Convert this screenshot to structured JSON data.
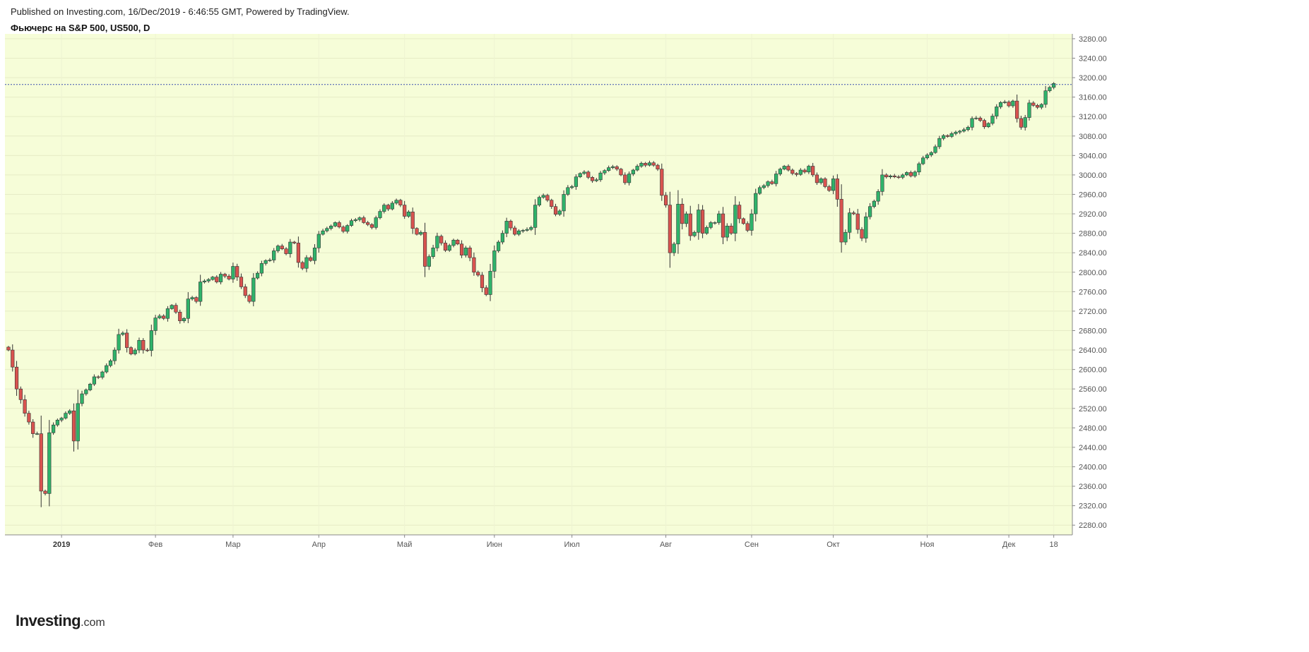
{
  "header": {
    "published": "Published on Investing.com, 16/Dec/2019 - 6:46:55 GMT, Powered by TradingView.",
    "symbol_title": "Фьючерс на S&P 500, US500, D"
  },
  "logo": {
    "main": "Investing",
    "suffix": ".com"
  },
  "colors": {
    "background": "#f6fdd8",
    "up": "#2fb36a",
    "down": "#d9534f",
    "wick": "#333333",
    "price_line": "#3a4fb0"
  },
  "chart_data": {
    "type": "candlestick",
    "title": "Фьючерс на S&P 500, US500, D",
    "ylim": [
      2260,
      3290
    ],
    "y_ticks": [
      "3280.00",
      "3240.00",
      "3200.00",
      "3160.00",
      "3120.00",
      "3080.00",
      "3040.00",
      "3000.00",
      "2960.00",
      "2920.00",
      "2880.00",
      "2840.00",
      "2800.00",
      "2760.00",
      "2720.00",
      "2680.00",
      "2640.00",
      "2600.00",
      "2560.00",
      "2520.00",
      "2480.00",
      "2440.00",
      "2400.00",
      "2360.00",
      "2320.00",
      "2280.00"
    ],
    "x_ticks": [
      {
        "label": "2019",
        "index": 13,
        "bold": true
      },
      {
        "label": "Фев",
        "index": 36
      },
      {
        "label": "Мар",
        "index": 55
      },
      {
        "label": "Апр",
        "index": 76
      },
      {
        "label": "Май",
        "index": 97
      },
      {
        "label": "Июн",
        "index": 119
      },
      {
        "label": "Июл",
        "index": 138
      },
      {
        "label": "Авг",
        "index": 161
      },
      {
        "label": "Сен",
        "index": 182
      },
      {
        "label": "Окт",
        "index": 202
      },
      {
        "label": "Ноя",
        "index": 225
      },
      {
        "label": "Дек",
        "index": 245
      },
      {
        "label": "18",
        "index": 256
      }
    ],
    "last_price": 3186,
    "closes": [
      2640,
      2605,
      2560,
      2538,
      2510,
      2492,
      2468,
      2468,
      2350,
      2345,
      2470,
      2486,
      2496,
      2500,
      2510,
      2515,
      2453,
      2530,
      2550,
      2558,
      2570,
      2585,
      2584,
      2595,
      2608,
      2618,
      2640,
      2672,
      2675,
      2645,
      2632,
      2640,
      2660,
      2640,
      2639,
      2680,
      2706,
      2710,
      2705,
      2725,
      2732,
      2718,
      2700,
      2705,
      2745,
      2748,
      2740,
      2780,
      2782,
      2785,
      2790,
      2780,
      2796,
      2792,
      2786,
      2812,
      2790,
      2770,
      2752,
      2740,
      2788,
      2798,
      2818,
      2824,
      2825,
      2844,
      2854,
      2848,
      2838,
      2862,
      2860,
      2820,
      2808,
      2830,
      2824,
      2850,
      2878,
      2885,
      2890,
      2895,
      2902,
      2893,
      2884,
      2896,
      2906,
      2908,
      2912,
      2902,
      2898,
      2892,
      2912,
      2925,
      2938,
      2930,
      2942,
      2948,
      2938,
      2915,
      2924,
      2890,
      2878,
      2882,
      2812,
      2832,
      2850,
      2874,
      2860,
      2845,
      2855,
      2866,
      2858,
      2835,
      2850,
      2830,
      2800,
      2794,
      2768,
      2754,
      2802,
      2844,
      2862,
      2880,
      2905,
      2891,
      2878,
      2885,
      2886,
      2888,
      2892,
      2938,
      2954,
      2958,
      2948,
      2935,
      2919,
      2926,
      2960,
      2974,
      2976,
      2996,
      3003,
      3006,
      2995,
      2988,
      2990,
      3004,
      3009,
      3015,
      3017,
      3012,
      3000,
      2984,
      3002,
      3010,
      3018,
      3024,
      3020,
      3025,
      3020,
      3012,
      2958,
      2938,
      2840,
      2858,
      2940,
      2900,
      2920,
      2875,
      2882,
      2928,
      2880,
      2892,
      2902,
      2902,
      2920,
      2872,
      2895,
      2880,
      2938,
      2910,
      2900,
      2886,
      2920,
      2962,
      2974,
      2978,
      2986,
      2982,
      3002,
      3012,
      3018,
      3010,
      3003,
      3001,
      3010,
      3006,
      3018,
      3000,
      2984,
      2992,
      2976,
      2968,
      2992,
      2950,
      2862,
      2882,
      2922,
      2920,
      2888,
      2870,
      2914,
      2935,
      2946,
      2966,
      3000,
      2996,
      2998,
      2996,
      2995,
      3000,
      3005,
      2998,
      3006,
      3023,
      3035,
      3041,
      3046,
      3058,
      3075,
      3081,
      3079,
      3085,
      3088,
      3090,
      3093,
      3098,
      3116,
      3117,
      3112,
      3099,
      3106,
      3121,
      3140,
      3149,
      3150,
      3142,
      3152,
      3116,
      3098,
      3118,
      3148,
      3143,
      3139,
      3145,
      3173,
      3180,
      3188
    ]
  }
}
